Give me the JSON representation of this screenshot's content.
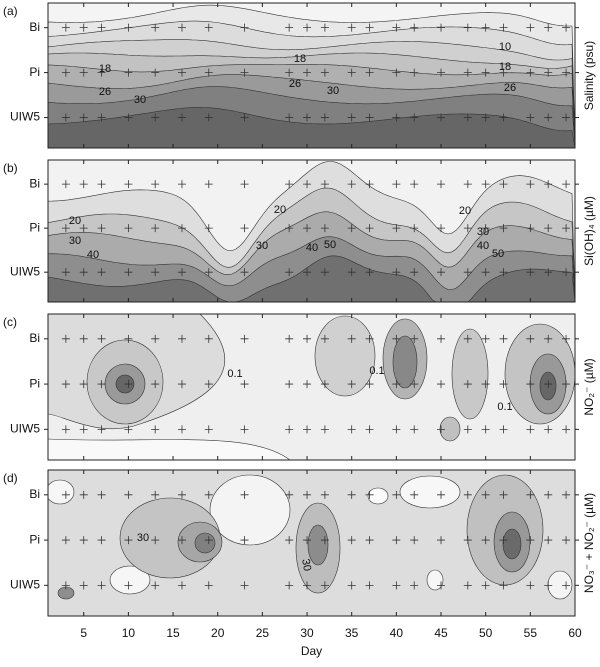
{
  "chart_data": [
    {
      "type": "contour",
      "panel_label": "(a)",
      "y_label": "Salinity (psu)",
      "categories": [
        "Bi",
        "Pi",
        "UIW5"
      ],
      "xlim": [
        1,
        60
      ],
      "sample_days": [
        3,
        5,
        7,
        10,
        13,
        16,
        19,
        23,
        28,
        30,
        32,
        35,
        37,
        40,
        42,
        45,
        48,
        50,
        52,
        55,
        57,
        59
      ],
      "contour_labels": [
        10,
        18,
        18,
        18,
        26,
        26,
        26,
        30,
        30
      ]
    },
    {
      "type": "contour",
      "panel_label": "(b)",
      "y_label": "Si(OH)₄ (µM)",
      "categories": [
        "Bi",
        "Pi",
        "UIW5"
      ],
      "xlim": [
        1,
        60
      ],
      "sample_days": [
        3,
        5,
        7,
        10,
        13,
        16,
        19,
        23,
        28,
        30,
        32,
        35,
        37,
        40,
        42,
        45,
        48,
        50,
        52,
        55,
        57,
        59
      ],
      "contour_labels": [
        20,
        30,
        40,
        20,
        30,
        40,
        50,
        20,
        30,
        40,
        50
      ]
    },
    {
      "type": "contour",
      "panel_label": "(c)",
      "y_label": "NO₂⁻ (µM)",
      "categories": [
        "Bi",
        "Pi",
        "UIW5"
      ],
      "xlim": [
        1,
        60
      ],
      "sample_days": [
        3,
        5,
        7,
        10,
        13,
        16,
        19,
        23,
        28,
        30,
        32,
        35,
        37,
        40,
        42,
        45,
        48,
        50,
        52,
        55,
        57,
        59
      ],
      "contour_labels": [
        0.1,
        0.1,
        0.1
      ]
    },
    {
      "type": "contour",
      "panel_label": "(d)",
      "y_label": "NO₃⁻ + NO₂⁻ (µM)",
      "categories": [
        "Bi",
        "Pi",
        "UIW5"
      ],
      "xlim": [
        1,
        60
      ],
      "sample_days": [
        3,
        5,
        7,
        10,
        13,
        16,
        19,
        23,
        28,
        30,
        32,
        35,
        37,
        40,
        42,
        45,
        48,
        50,
        52,
        55,
        57,
        59
      ],
      "contour_labels": [
        30,
        30
      ],
      "x_label": "Day",
      "xticks": [
        5,
        10,
        15,
        20,
        25,
        30,
        35,
        40,
        45,
        50,
        55,
        60
      ]
    }
  ]
}
